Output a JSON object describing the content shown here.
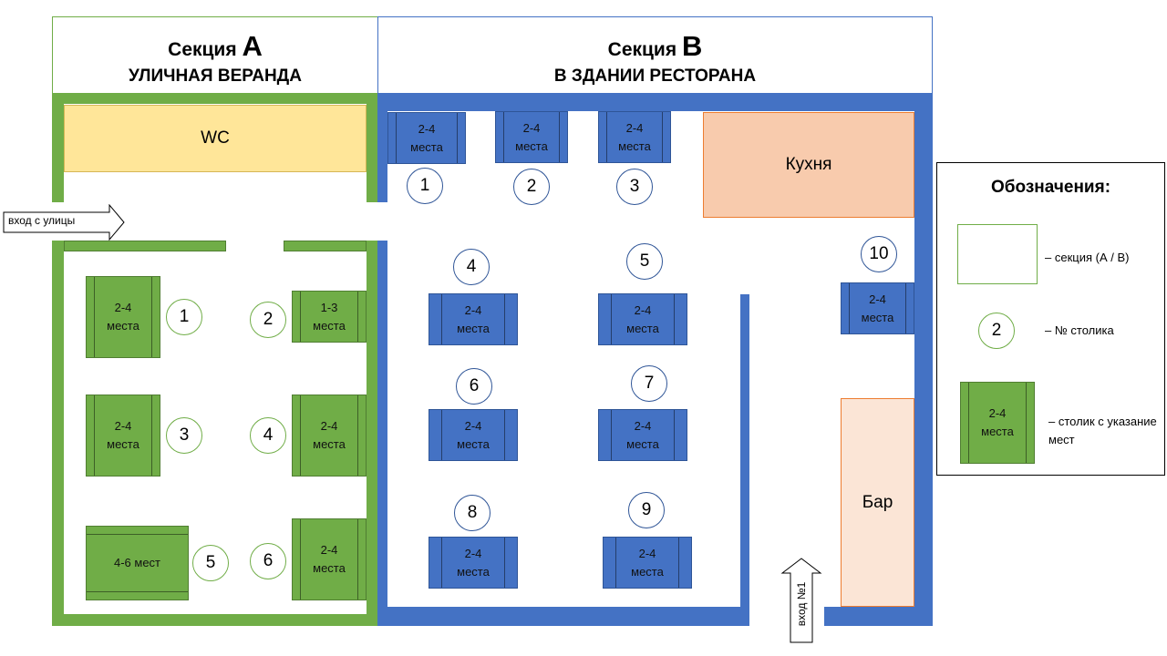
{
  "section_a": {
    "label": "Секция",
    "letter": "A",
    "subtitle": "УЛИЧНАЯ ВЕРАНДА"
  },
  "section_b": {
    "label": "Секция",
    "letter": "B",
    "subtitle": "В ЗДАНИИ РЕСТОРАНА"
  },
  "rooms": {
    "wc": "WC",
    "kitchen": "Кухня",
    "bar": "Бар"
  },
  "entrances": {
    "street": "вход с улицы",
    "main": "вход №1"
  },
  "tables_a": [
    {
      "num": "1",
      "seats": "2-4 места"
    },
    {
      "num": "2",
      "seats": "1-3 места"
    },
    {
      "num": "3",
      "seats": "2-4 места"
    },
    {
      "num": "4",
      "seats": "2-4 места"
    },
    {
      "num": "5",
      "seats": "4-6 мест"
    },
    {
      "num": "6",
      "seats": "2-4 места"
    }
  ],
  "tables_b": [
    {
      "num": "1",
      "seats": "2-4 места"
    },
    {
      "num": "2",
      "seats": "2-4 места"
    },
    {
      "num": "3",
      "seats": "2-4 места"
    },
    {
      "num": "4",
      "seats": "2-4 места"
    },
    {
      "num": "5",
      "seats": "2-4 места"
    },
    {
      "num": "6",
      "seats": "2-4 места"
    },
    {
      "num": "7",
      "seats": "2-4 места"
    },
    {
      "num": "8",
      "seats": "2-4 места"
    },
    {
      "num": "9",
      "seats": "2-4 места"
    },
    {
      "num": "10",
      "seats": "2-4 места"
    }
  ],
  "legend": {
    "title": "Обозначения:",
    "section_text": "– секция (А / В)",
    "number_sample": "2",
    "number_text": "– № столика",
    "table_sample": "2-4 места",
    "table_text": "– столик с указание мест"
  },
  "colors": {
    "section_a": "#70ad47",
    "section_b": "#4472c4",
    "wc": "#ffe699",
    "kitchen": "#f8cbad",
    "bar": "#fbe5d6"
  }
}
